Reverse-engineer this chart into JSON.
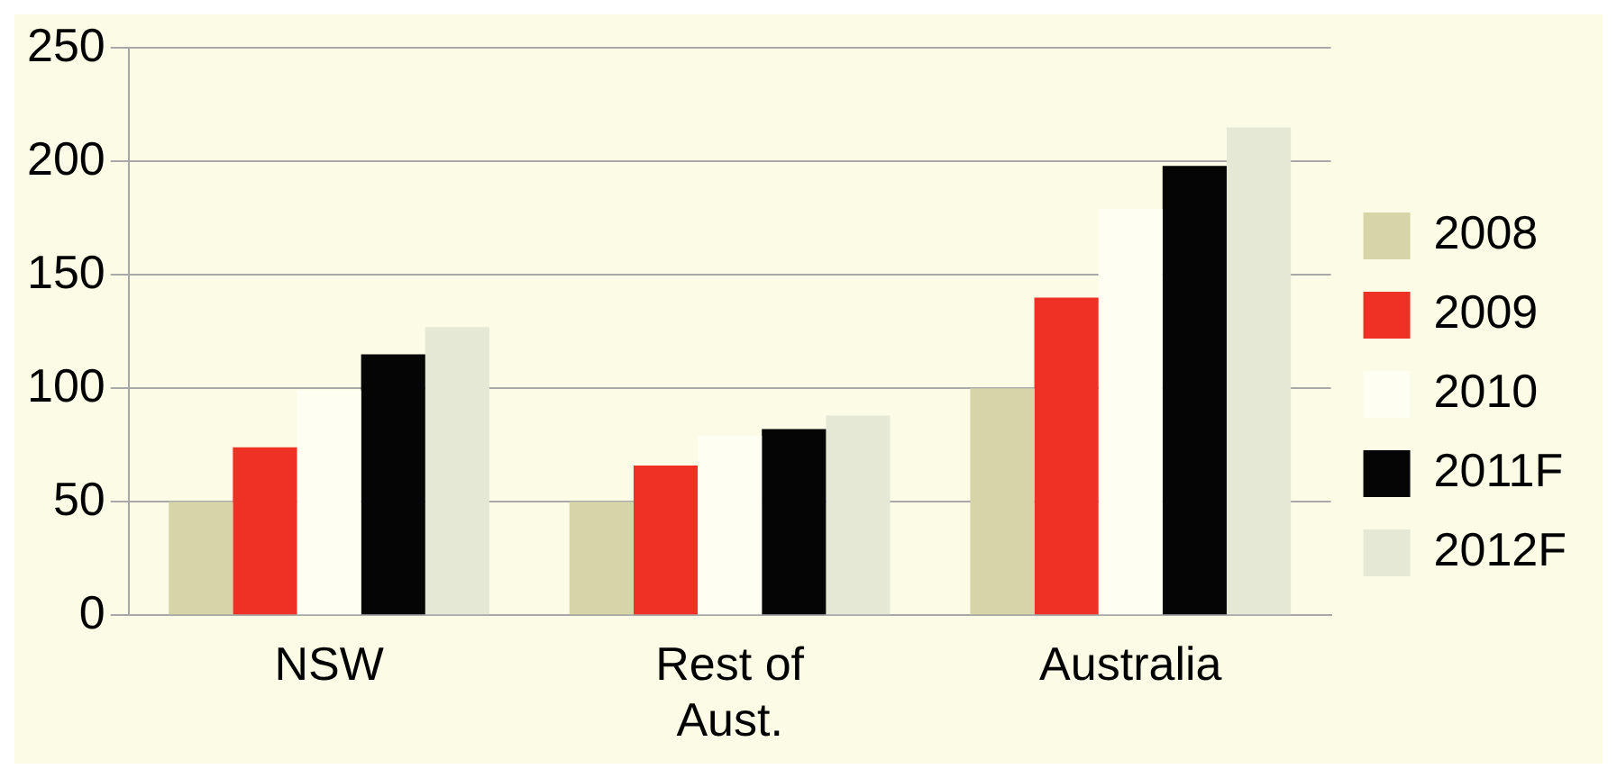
{
  "chart_data": {
    "type": "bar",
    "categories": [
      "NSW",
      "Rest of Aust.",
      "Australia"
    ],
    "series": [
      {
        "name": "2008",
        "color": "#d6d5a8",
        "values": [
          50,
          50,
          100
        ]
      },
      {
        "name": "2009",
        "color": "#ee3124",
        "values": [
          74,
          66,
          140
        ]
      },
      {
        "name": "2010",
        "color": "#fefef2",
        "values": [
          99,
          79,
          179
        ]
      },
      {
        "name": "2011F",
        "color": "#050505",
        "values": [
          115,
          82,
          198
        ]
      },
      {
        "name": "2012F",
        "color": "#e6e8d6",
        "values": [
          127,
          88,
          215
        ]
      }
    ],
    "ylim": [
      0,
      250
    ],
    "yticks": [
      0,
      50,
      100,
      150,
      200,
      250
    ],
    "grid": "y",
    "legend": "right"
  }
}
